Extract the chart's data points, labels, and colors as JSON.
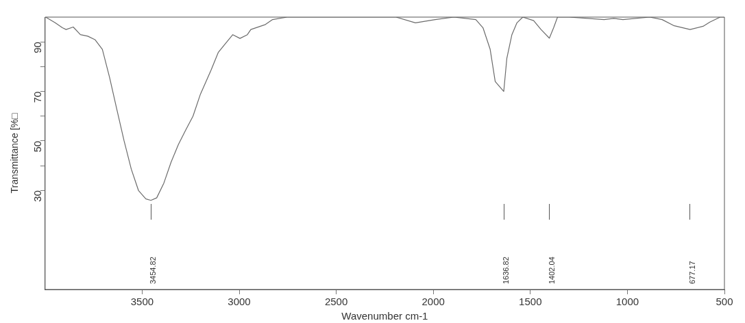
{
  "chart_data": {
    "type": "line",
    "xlabel": "Wavenumber cm-1",
    "ylabel": "Transmittance [%□",
    "xlim": [
      4000,
      500
    ],
    "xticks": [
      3500,
      3000,
      2500,
      2000,
      1500,
      1000,
      500
    ],
    "ylim": [
      -10,
      100
    ],
    "yticks": [
      30,
      {
        "value": 40,
        "label": null
      },
      50,
      {
        "value": 60,
        "label": null
      },
      70,
      {
        "value": 80,
        "label": null
      },
      90
    ],
    "grid": false,
    "legend": false,
    "marker": "none",
    "line_style": "solid",
    "series": [
      {
        "color": "#6b6b6b",
        "x": [
          3997,
          3948,
          3911,
          3892,
          3855,
          3818,
          3780,
          3743,
          3705,
          3668,
          3631,
          3593,
          3556,
          3519,
          3481,
          3455,
          3425,
          3388,
          3351,
          3313,
          3276,
          3238,
          3201,
          3145,
          3108,
          3070,
          3033,
          2996,
          2958,
          2940,
          2865,
          2828,
          2753,
          2400,
          2192,
          2092,
          1990,
          1894,
          1781,
          1744,
          1707,
          1681,
          1637,
          1621,
          1595,
          1569,
          1539,
          1483,
          1445,
          1402,
          1380,
          1360,
          1300,
          1120,
          1070,
          1023,
          885,
          821,
          762,
          677,
          610,
          575,
          522,
          500
        ],
        "values": [
          100,
          97.7,
          95.7,
          95,
          96,
          92.9,
          92.3,
          90.9,
          87,
          75.7,
          62.9,
          50,
          38.6,
          30,
          26.6,
          26,
          27,
          33,
          41.4,
          48.6,
          54.3,
          60,
          68.6,
          78.6,
          85.7,
          89.4,
          92.9,
          91.4,
          92.9,
          95,
          97,
          99,
          100,
          100,
          100,
          97.7,
          99,
          100,
          99,
          95.7,
          87,
          74,
          70,
          83.4,
          92.9,
          97.7,
          100,
          98.6,
          95,
          91.5,
          95.7,
          100,
          100,
          99,
          99.5,
          99,
          100,
          99,
          96.6,
          95,
          96.3,
          98,
          100,
          100
        ]
      }
    ],
    "annotations": [
      "3454.82",
      "1636.82",
      "1402.04",
      "677.17"
    ]
  }
}
